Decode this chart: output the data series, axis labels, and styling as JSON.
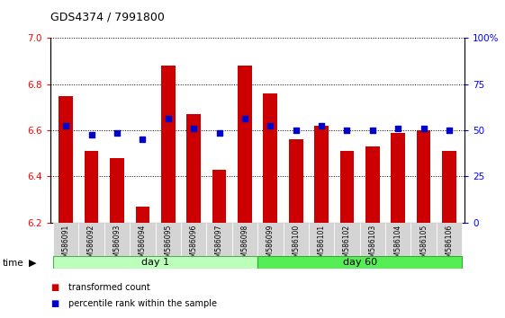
{
  "title": "GDS4374 / 7991800",
  "samples": [
    "GSM586091",
    "GSM586092",
    "GSM586093",
    "GSM586094",
    "GSM586095",
    "GSM586096",
    "GSM586097",
    "GSM586098",
    "GSM586099",
    "GSM586100",
    "GSM586101",
    "GSM586102",
    "GSM586103",
    "GSM586104",
    "GSM586105",
    "GSM586106"
  ],
  "bar_values": [
    6.75,
    6.51,
    6.48,
    6.27,
    6.88,
    6.67,
    6.43,
    6.88,
    6.76,
    6.56,
    6.62,
    6.51,
    6.53,
    6.59,
    6.6,
    6.51
  ],
  "percentile_values": [
    6.62,
    6.58,
    6.59,
    6.56,
    6.65,
    6.61,
    6.59,
    6.65,
    6.62,
    6.6,
    6.62,
    6.6,
    6.6,
    6.61,
    6.61,
    6.6
  ],
  "bar_color": "#cc0000",
  "percentile_color": "#0000cc",
  "ylim": [
    6.2,
    7.0
  ],
  "yticks": [
    6.2,
    6.4,
    6.6,
    6.8,
    7.0
  ],
  "right_yticks": [
    0,
    25,
    50,
    75,
    100
  ],
  "right_ylim": [
    0,
    100
  ],
  "day1_samples": 8,
  "day60_samples": 8,
  "day1_label": "day 1",
  "day60_label": "day 60",
  "day1_color": "#bbffbb",
  "day60_color": "#55ee55",
  "legend_bar": "transformed count",
  "legend_pct": "percentile rank within the sample",
  "base_value": 6.2
}
